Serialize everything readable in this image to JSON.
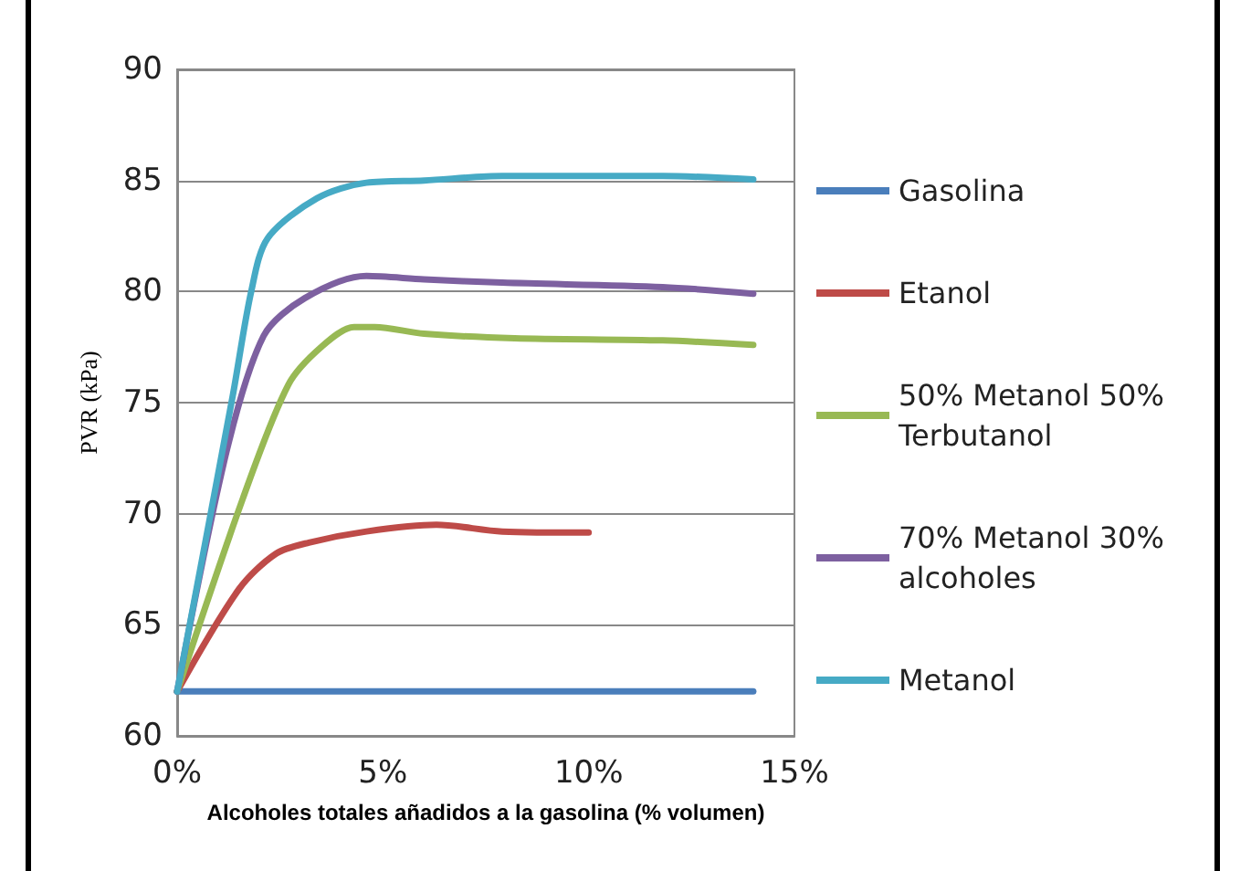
{
  "chart_data": {
    "type": "line",
    "xlabel": "Alcoholes totales añadidos a la gasolina (% volumen)",
    "ylabel": "PVR (kPa)",
    "xlim": [
      0,
      15
    ],
    "xticks": [
      {
        "value": 0,
        "label": "0%"
      },
      {
        "value": 5,
        "label": "5%"
      },
      {
        "value": 10,
        "label": "10%"
      },
      {
        "value": 15,
        "label": "15%"
      }
    ],
    "ylim": [
      60,
      90
    ],
    "yticks": [
      60,
      65,
      70,
      75,
      80,
      85,
      90
    ],
    "grid": "y",
    "legend": "right",
    "marker": "none",
    "line_style": "solid",
    "series": [
      {
        "name": "Gasolina",
        "color": "#4a7ebb",
        "x": [
          0,
          14
        ],
        "values": [
          62,
          62
        ]
      },
      {
        "name": "Etanol",
        "color": "#be4b48",
        "x": [
          0,
          1.5,
          2.4,
          3.2,
          4.6,
          6.3,
          7.9,
          10
        ],
        "values": [
          62,
          66.6,
          68.2,
          68.7,
          69.2,
          69.5,
          69.2,
          69.15
        ]
      },
      {
        "name": "50% Metanol 50% Terbutanol",
        "color": "#98b954",
        "x": [
          0,
          1.6,
          2.7,
          3.5,
          4.3,
          4.8,
          6,
          8.2,
          11.8,
          14
        ],
        "values": [
          62,
          70.7,
          75.8,
          77.5,
          78.4,
          78.4,
          78.1,
          77.9,
          77.8,
          77.6
        ]
      },
      {
        "name": "70% Metanol 30% alcoholes",
        "color": "#7d60a0",
        "x": [
          0,
          1.2,
          2.1,
          3.1,
          4.6,
          6,
          7.9,
          11.8,
          14
        ],
        "values": [
          62,
          72.8,
          78,
          79.7,
          80.7,
          80.55,
          80.4,
          80.2,
          79.9
        ]
      },
      {
        "name": "Metanol",
        "color": "#46aac5",
        "x": [
          0,
          1.35,
          1.8,
          2.2,
          3.4,
          4.6,
          6,
          7.9,
          11.8,
          14
        ],
        "values": [
          62,
          75.3,
          80,
          82.4,
          84.2,
          84.9,
          85,
          85.2,
          85.2,
          85.05
        ]
      }
    ]
  }
}
